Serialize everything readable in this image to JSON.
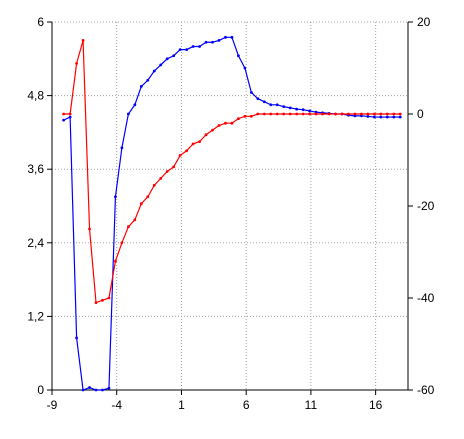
{
  "chart_data": {
    "type": "line",
    "title": "",
    "xlabel": "",
    "ylabel": "",
    "y2label": "",
    "xlim": [
      -9,
      18.5
    ],
    "ylim": [
      0,
      6
    ],
    "y2lim": [
      -60,
      20
    ],
    "grid": true,
    "legend": "none",
    "x_ticks": [
      "-9",
      "-4",
      "1",
      "6",
      "11",
      "16"
    ],
    "y_ticks": [
      "0",
      "1,2",
      "2,4",
      "3,6",
      "4,8",
      "6"
    ],
    "y2_ticks": [
      "-60",
      "-40",
      "-20",
      "0",
      "20"
    ],
    "series": [
      {
        "axis": "left",
        "color": "#0000ff",
        "points": [
          [
            -8.1,
            4.4
          ],
          [
            -7.6,
            4.45
          ],
          [
            -7.1,
            0.85
          ],
          [
            -6.6,
            0.0
          ],
          [
            -6.1,
            0.04
          ],
          [
            -5.6,
            0.0
          ],
          [
            -5.1,
            0.0
          ],
          [
            -4.6,
            0.03
          ],
          [
            -4.1,
            3.15
          ],
          [
            -3.6,
            3.95
          ],
          [
            -3.1,
            4.5
          ],
          [
            -2.6,
            4.65
          ],
          [
            -2.1,
            4.95
          ],
          [
            -1.6,
            5.05
          ],
          [
            -1.1,
            5.2
          ],
          [
            -0.6,
            5.3
          ],
          [
            -0.1,
            5.4
          ],
          [
            0.4,
            5.45
          ],
          [
            0.9,
            5.55
          ],
          [
            1.4,
            5.55
          ],
          [
            1.9,
            5.6
          ],
          [
            2.4,
            5.6
          ],
          [
            2.9,
            5.67
          ],
          [
            3.4,
            5.67
          ],
          [
            3.9,
            5.7
          ],
          [
            4.4,
            5.75
          ],
          [
            4.9,
            5.75
          ],
          [
            5.4,
            5.45
          ],
          [
            5.9,
            5.25
          ],
          [
            6.4,
            4.85
          ],
          [
            6.9,
            4.75
          ],
          [
            7.4,
            4.7
          ],
          [
            7.9,
            4.65
          ],
          [
            8.4,
            4.65
          ],
          [
            8.9,
            4.62
          ],
          [
            9.4,
            4.6
          ],
          [
            9.9,
            4.58
          ],
          [
            10.4,
            4.57
          ],
          [
            10.9,
            4.55
          ],
          [
            11.4,
            4.53
          ],
          [
            11.9,
            4.52
          ],
          [
            12.4,
            4.51
          ],
          [
            12.9,
            4.5
          ],
          [
            13.4,
            4.5
          ],
          [
            13.9,
            4.48
          ],
          [
            14.4,
            4.47
          ],
          [
            14.9,
            4.47
          ],
          [
            15.4,
            4.46
          ],
          [
            15.9,
            4.45
          ],
          [
            16.4,
            4.45
          ],
          [
            16.9,
            4.45
          ],
          [
            17.4,
            4.45
          ],
          [
            17.9,
            4.45
          ]
        ]
      },
      {
        "axis": "right",
        "color": "#ff0000",
        "points": [
          [
            -8.1,
            0
          ],
          [
            -7.6,
            0
          ],
          [
            -7.1,
            11
          ],
          [
            -6.6,
            16
          ],
          [
            -6.1,
            -25
          ],
          [
            -5.6,
            -41
          ],
          [
            -5.1,
            -40.5
          ],
          [
            -4.6,
            -40
          ],
          [
            -4.1,
            -32
          ],
          [
            -3.6,
            -28
          ],
          [
            -3.1,
            -24.5
          ],
          [
            -2.6,
            -23
          ],
          [
            -2.1,
            -19.5
          ],
          [
            -1.6,
            -18
          ],
          [
            -1.1,
            -15.5
          ],
          [
            -0.6,
            -14
          ],
          [
            -0.1,
            -12.5
          ],
          [
            0.4,
            -11.5
          ],
          [
            0.9,
            -9
          ],
          [
            1.4,
            -8
          ],
          [
            1.9,
            -6.5
          ],
          [
            2.4,
            -6
          ],
          [
            2.9,
            -4.5
          ],
          [
            3.4,
            -3.5
          ],
          [
            3.9,
            -2.5
          ],
          [
            4.4,
            -2
          ],
          [
            4.9,
            -2
          ],
          [
            5.4,
            -1
          ],
          [
            5.9,
            -0.5
          ],
          [
            6.4,
            -0.5
          ],
          [
            6.9,
            0
          ],
          [
            7.4,
            0
          ],
          [
            7.9,
            0
          ],
          [
            8.4,
            0
          ],
          [
            8.9,
            0
          ],
          [
            9.4,
            0
          ],
          [
            9.9,
            0
          ],
          [
            10.4,
            0
          ],
          [
            10.9,
            0
          ],
          [
            11.4,
            0
          ],
          [
            11.9,
            0
          ],
          [
            12.4,
            0
          ],
          [
            12.9,
            0
          ],
          [
            13.4,
            0
          ],
          [
            13.9,
            0
          ],
          [
            14.4,
            0
          ],
          [
            14.9,
            0
          ],
          [
            15.4,
            0
          ],
          [
            15.9,
            0
          ],
          [
            16.4,
            0
          ],
          [
            16.9,
            0
          ],
          [
            17.4,
            0
          ],
          [
            17.9,
            0
          ]
        ]
      }
    ]
  }
}
